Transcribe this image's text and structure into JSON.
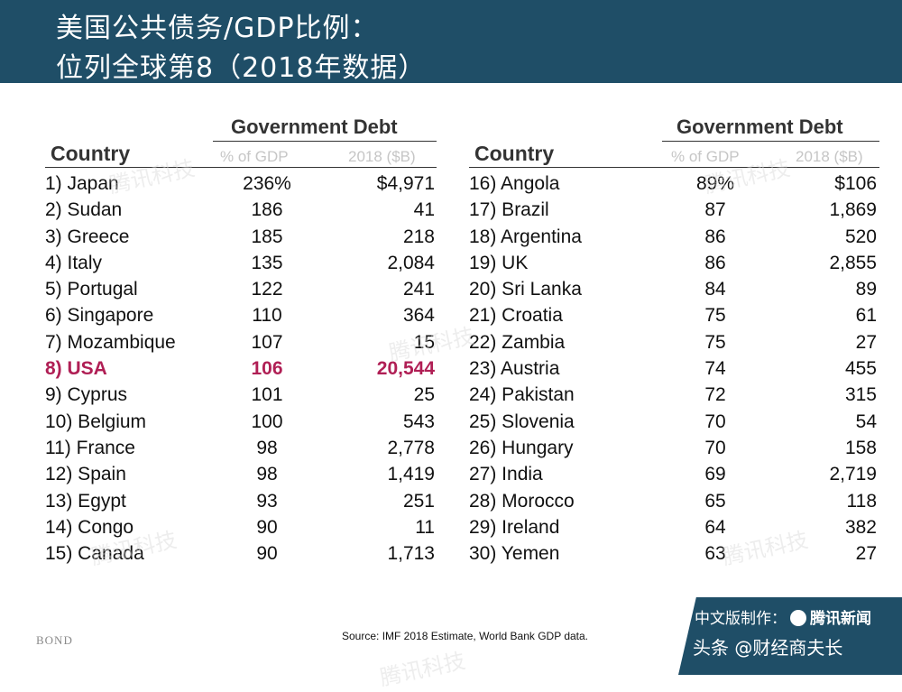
{
  "header": {
    "title_line1": "美国公共债务/GDP比例：",
    "title_line2": "位列全球第8（2018年数据）"
  },
  "table_headers": {
    "group": "Government Debt",
    "country": "Country",
    "pct": "% of GDP",
    "amount": "2018 ($B)"
  },
  "left_rows": [
    {
      "name": "1) Japan",
      "pct": "236%",
      "amt": "$4,971"
    },
    {
      "name": "2) Sudan",
      "pct": "186",
      "amt": "41"
    },
    {
      "name": "3) Greece",
      "pct": "185",
      "amt": "218"
    },
    {
      "name": "4) Italy",
      "pct": "135",
      "amt": "2,084"
    },
    {
      "name": "5) Portugal",
      "pct": "122",
      "amt": "241"
    },
    {
      "name": "6) Singapore",
      "pct": "110",
      "amt": "364"
    },
    {
      "name": "7) Mozambique",
      "pct": "107",
      "amt": "15"
    },
    {
      "name": "8) USA",
      "pct": "106",
      "amt": "20,544"
    },
    {
      "name": "9) Cyprus",
      "pct": "101",
      "amt": "25"
    },
    {
      "name": "10) Belgium",
      "pct": "100",
      "amt": "543"
    },
    {
      "name": "11) France",
      "pct": "98",
      "amt": "2,778"
    },
    {
      "name": "12) Spain",
      "pct": "98",
      "amt": "1,419"
    },
    {
      "name": "13) Egypt",
      "pct": "93",
      "amt": "251"
    },
    {
      "name": "14) Congo",
      "pct": "90",
      "amt": "11"
    },
    {
      "name": "15) Canada",
      "pct": "90",
      "amt": "1,713"
    }
  ],
  "right_rows": [
    {
      "name": "16) Angola",
      "pct": "89%",
      "amt": "$106"
    },
    {
      "name": "17) Brazil",
      "pct": "87",
      "amt": "1,869"
    },
    {
      "name": "18) Argentina",
      "pct": "86",
      "amt": "520"
    },
    {
      "name": "19) UK",
      "pct": "86",
      "amt": "2,855"
    },
    {
      "name": "20) Sri Lanka",
      "pct": "84",
      "amt": "89"
    },
    {
      "name": "21) Croatia",
      "pct": "75",
      "amt": "61"
    },
    {
      "name": "22) Zambia",
      "pct": "75",
      "amt": "27"
    },
    {
      "name": "23) Austria",
      "pct": "74",
      "amt": "455"
    },
    {
      "name": "24) Pakistan",
      "pct": "72",
      "amt": "315"
    },
    {
      "name": "25) Slovenia",
      "pct": "70",
      "amt": "54"
    },
    {
      "name": "26) Hungary",
      "pct": "70",
      "amt": "158"
    },
    {
      "name": "27) India",
      "pct": "69",
      "amt": "2,719"
    },
    {
      "name": "28) Morocco",
      "pct": "65",
      "amt": "118"
    },
    {
      "name": "29) Ireland",
      "pct": "64",
      "amt": "382"
    },
    {
      "name": "30) Yemen",
      "pct": "63",
      "amt": "27"
    }
  ],
  "highlight_row_index": 7,
  "colors": {
    "header_bg": "#1f4e67",
    "highlight": "#b01f55"
  },
  "footer": {
    "source": "Source: IMF 2018 Estimate, World Bank GDP data.",
    "logo": "BOND",
    "badge_line1": "中文版制作：",
    "badge_brand": "腾讯新闻",
    "badge_line2": "头条 @财经商夫长"
  },
  "watermark_text": "腾讯科技"
}
